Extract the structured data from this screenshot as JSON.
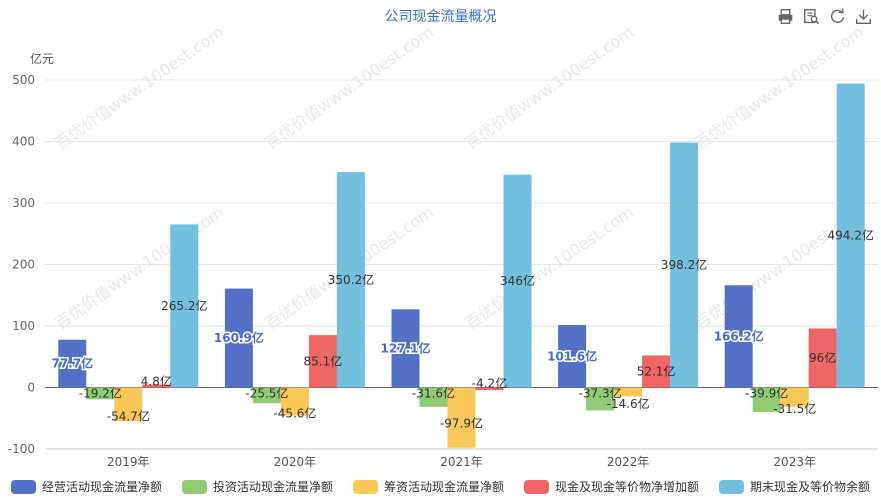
{
  "chart_data": {
    "type": "bar",
    "title": "公司现金流量概况",
    "y_unit": "亿元",
    "categories": [
      "2019年",
      "2020年",
      "2021年",
      "2022年",
      "2023年"
    ],
    "ylim": [
      -100,
      500
    ],
    "yticks": [
      "-100",
      "0",
      "100",
      "200",
      "300",
      "400",
      "500"
    ],
    "grid": true,
    "legend_position": "bottom",
    "series": [
      {
        "name": "经营活动现金流量净额",
        "color": "#5470c6",
        "values": [
          77.7,
          160.9,
          127.1,
          101.6,
          166.2
        ],
        "labels": [
          "77.7亿",
          "160.9亿",
          "127.1亿",
          "101.6亿",
          "166.2亿"
        ]
      },
      {
        "name": "投资活动现金流量净额",
        "color": "#91cc75",
        "values": [
          -19.2,
          -25.5,
          -31.6,
          -37.3,
          -39.9
        ],
        "labels": [
          "-19.2亿",
          "-25.5亿",
          "-31.6亿",
          "-37.3亿",
          "-39.9亿"
        ]
      },
      {
        "name": "筹资活动现金流量净额",
        "color": "#fac858",
        "values": [
          -54.7,
          -45.6,
          -97.9,
          -14.6,
          -31.5
        ],
        "labels": [
          "-54.7亿",
          "-45.6亿",
          "-97.9亿",
          "-14.6亿",
          "-31.5亿"
        ]
      },
      {
        "name": "现金及现金等价物净增加额",
        "color": "#ee6666",
        "values": [
          4.8,
          85.1,
          -4.2,
          52.1,
          96
        ],
        "labels": [
          "4.8亿",
          "85.1亿",
          "-4.2亿",
          "52.1亿",
          "96亿"
        ]
      },
      {
        "name": "期末现金及等价物余额",
        "color": "#73c0de",
        "values": [
          265.2,
          350.2,
          346,
          398.2,
          494.2
        ],
        "labels": [
          "265.2亿",
          "350.2亿",
          "346亿",
          "398.2亿",
          "494.2亿"
        ]
      }
    ]
  },
  "toolbox": {
    "icons": [
      "print-icon",
      "data-view-icon",
      "refresh-icon",
      "download-icon"
    ]
  },
  "watermark": "百优价值www.100est.com"
}
